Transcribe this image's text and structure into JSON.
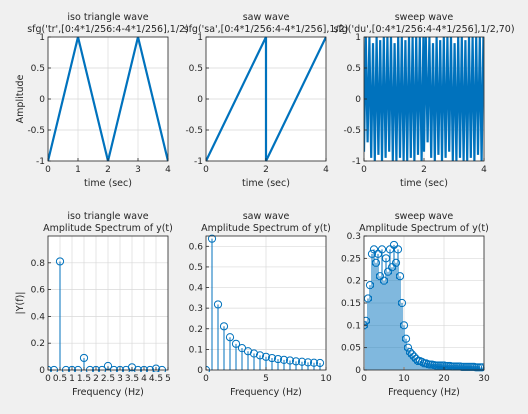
{
  "figure": {
    "background": "#f0f0f0",
    "axes_bg": "#ffffff",
    "line_color": "#0072bd",
    "grid_color": "#d9d9d9",
    "frame_color": "#262626"
  },
  "chart_data": [
    {
      "type": "line",
      "title": "iso triangle wave",
      "subtitle": "sfg('tr',[0:4*1/256:4-4*1/256],1/2)",
      "xlabel": "time (sec)",
      "ylabel": "Amplitude",
      "xlim": [
        0,
        4
      ],
      "ylim": [
        -1,
        1
      ],
      "xticks": [
        0,
        1,
        2,
        3,
        4
      ],
      "xtick_labels": [
        "0",
        "1",
        "2",
        "3",
        "4"
      ],
      "yticks": [
        -1,
        -0.5,
        0,
        0.5,
        1
      ],
      "ytick_labels": [
        "-1",
        "-0.5",
        "0",
        "0.5",
        "1"
      ],
      "grid": true,
      "series": [
        {
          "x": [
            0,
            1,
            2,
            3,
            4
          ],
          "y": [
            -1,
            1,
            -1,
            1,
            -1
          ]
        }
      ]
    },
    {
      "type": "line",
      "title": "saw wave",
      "subtitle": "sfg('sa',[0:4*1/256:4-4*1/256],1/2)",
      "xlabel": "time (sec)",
      "ylabel": "",
      "xlim": [
        0,
        4
      ],
      "ylim": [
        -1,
        1
      ],
      "xticks": [
        0,
        2,
        4
      ],
      "xtick_labels": [
        "0",
        "2",
        "4"
      ],
      "yticks": [
        -1,
        -0.5,
        0,
        0.5,
        1
      ],
      "ytick_labels": [
        "-1",
        "-0.5",
        "0",
        "0.5",
        "1"
      ],
      "grid": true,
      "series": [
        {
          "x": [
            0,
            2,
            2,
            4
          ],
          "y": [
            -1,
            1,
            -1,
            1
          ]
        }
      ]
    },
    {
      "type": "line",
      "title": "sweep wave",
      "subtitle": "sfg('du',[0:4*1/256:4-4*1/256],1/2,70)",
      "xlabel": "time (sec)",
      "ylabel": "",
      "xlim": [
        0,
        4
      ],
      "ylim": [
        -1,
        1
      ],
      "xticks": [
        0,
        2,
        4
      ],
      "xtick_labels": [
        "0",
        "2",
        "4"
      ],
      "yticks": [
        -1,
        -0.5,
        0,
        0.5,
        1
      ],
      "ytick_labels": [
        "-1",
        "-0.5",
        "0",
        "0.5",
        "1"
      ],
      "grid": true,
      "series": [
        {
          "x": [
            0,
            0.06,
            0.12,
            0.18,
            0.24,
            0.3,
            0.36,
            0.42,
            0.48,
            0.54,
            0.6,
            0.66,
            0.72,
            0.78,
            0.84,
            0.9,
            0.96,
            1.02,
            1.08,
            1.14,
            1.2,
            1.26,
            1.32,
            1.38,
            1.44,
            1.5,
            1.56,
            1.62,
            1.68,
            1.74,
            1.8,
            1.86,
            1.92,
            1.98,
            2.0,
            2.06,
            2.12,
            2.18,
            2.24,
            2.3,
            2.36,
            2.42,
            2.48,
            2.54,
            2.6,
            2.66,
            2.72,
            2.78,
            2.84,
            2.9,
            2.96,
            3.02,
            3.08,
            3.14,
            3.2,
            3.26,
            3.32,
            3.38,
            3.44,
            3.5,
            3.56,
            3.62,
            3.68,
            3.74,
            3.8,
            3.86,
            3.92,
            3.98
          ],
          "y": [
            -0.85,
            1,
            -0.7,
            1,
            -0.95,
            0.9,
            -1,
            1,
            -0.9,
            0.95,
            -1,
            1,
            -0.95,
            1,
            -0.85,
            1,
            -1,
            0.9,
            -1,
            1,
            -0.95,
            1,
            -1,
            0.95,
            -1,
            1,
            -0.95,
            1,
            -1,
            1,
            -0.9,
            1,
            -1,
            1,
            -0.85,
            1,
            -0.7,
            1,
            -0.95,
            0.9,
            -1,
            1,
            -0.9,
            0.95,
            -1,
            1,
            -0.95,
            1,
            -0.85,
            1,
            -1,
            0.9,
            -1,
            1,
            -0.95,
            1,
            -1,
            0.95,
            -1,
            1,
            -0.95,
            1,
            -1,
            1,
            -0.9,
            1,
            -1,
            1
          ]
        }
      ]
    },
    {
      "type": "stem",
      "title": "iso triangle wave",
      "subtitle": "Amplitude Spectrum of y(t)",
      "xlabel": "Frequency (Hz)",
      "ylabel": "|Y(f)|",
      "xlim": [
        0,
        5
      ],
      "ylim": [
        0,
        1
      ],
      "xticks": [
        0,
        0.5,
        1,
        1.5,
        2,
        2.5,
        3,
        3.5,
        4,
        4.5,
        5
      ],
      "xtick_labels": [
        "0",
        "0.5",
        "1",
        "1.5",
        "2",
        "2.5",
        "3",
        "3.5",
        "4",
        "4.5",
        "5"
      ],
      "yticks": [
        0,
        0.2,
        0.4,
        0.6,
        0.8
      ],
      "ytick_labels": [
        "0",
        "0.2",
        "0.4",
        "0.6",
        "0.8"
      ],
      "grid": true,
      "series": [
        {
          "x": [
            0,
            0.25,
            0.5,
            0.75,
            1,
            1.25,
            1.5,
            1.75,
            2,
            2.25,
            2.5,
            2.75,
            3,
            3.25,
            3.5,
            3.75,
            4,
            4.25,
            4.5,
            4.75
          ],
          "y": [
            0,
            0,
            0.81,
            0,
            0,
            0,
            0.09,
            0,
            0,
            0,
            0.03,
            0,
            0,
            0,
            0.02,
            0,
            0,
            0,
            0.01,
            0
          ]
        }
      ]
    },
    {
      "type": "stem",
      "title": "saw wave",
      "subtitle": "Amplitude Spectrum of y(t)",
      "xlabel": "Frequency (Hz)",
      "ylabel": "",
      "xlim": [
        0,
        10
      ],
      "ylim": [
        0,
        0.65
      ],
      "xticks": [
        0,
        5,
        10
      ],
      "xtick_labels": [
        "0",
        "5",
        "10"
      ],
      "yticks": [
        0,
        0.1,
        0.2,
        0.3,
        0.4,
        0.5,
        0.6
      ],
      "ytick_labels": [
        "0",
        "0.1",
        "0.2",
        "0.3",
        "0.4",
        "0.5",
        "0.6"
      ],
      "grid": true,
      "series": [
        {
          "x": [
            0,
            0.5,
            1,
            1.5,
            2,
            2.5,
            3,
            3.5,
            4,
            4.5,
            5,
            5.5,
            6,
            6.5,
            7,
            7.5,
            8,
            8.5,
            9,
            9.5
          ],
          "y": [
            0,
            0.637,
            0.318,
            0.212,
            0.159,
            0.127,
            0.106,
            0.091,
            0.08,
            0.071,
            0.064,
            0.058,
            0.053,
            0.049,
            0.046,
            0.042,
            0.04,
            0.037,
            0.035,
            0.034
          ]
        }
      ]
    },
    {
      "type": "stem",
      "title": "sweep wave",
      "subtitle": "Amplitude Spectrum of y(t)",
      "xlabel": "Frequency (Hz)",
      "ylabel": "",
      "xlim": [
        0,
        30
      ],
      "ylim": [
        0,
        0.3
      ],
      "xticks": [
        0,
        10,
        20,
        30
      ],
      "xtick_labels": [
        "0",
        "10",
        "20",
        "30"
      ],
      "yticks": [
        0,
        0.05,
        0.1,
        0.15,
        0.2,
        0.25,
        0.3
      ],
      "ytick_labels": [
        "0",
        "0.05",
        "0.1",
        "0.15",
        "0.2",
        "0.25",
        "0.3"
      ],
      "grid": true,
      "series": [
        {
          "x": [
            0,
            0.5,
            1,
            1.5,
            2,
            2.5,
            3,
            3.5,
            4,
            4.5,
            5,
            5.5,
            6,
            6.5,
            7,
            7.5,
            8,
            8.5,
            9,
            9.5,
            10,
            10.5,
            11,
            11.5,
            12,
            12.5,
            13,
            13.5,
            14,
            14.5,
            15,
            15.5,
            16,
            16.5,
            17,
            17.5,
            18,
            18.5,
            19,
            19.5,
            20,
            20.5,
            21,
            21.5,
            22,
            22.5,
            23,
            23.5,
            24,
            24.5,
            25,
            25.5,
            26,
            26.5,
            27,
            27.5,
            28,
            28.5,
            29,
            29.5
          ],
          "y": [
            0.1,
            0.11,
            0.16,
            0.19,
            0.26,
            0.27,
            0.24,
            0.26,
            0.21,
            0.27,
            0.2,
            0.25,
            0.22,
            0.27,
            0.23,
            0.28,
            0.24,
            0.27,
            0.21,
            0.15,
            0.1,
            0.07,
            0.05,
            0.04,
            0.035,
            0.03,
            0.025,
            0.02,
            0.02,
            0.018,
            0.015,
            0.015,
            0.013,
            0.012,
            0.012,
            0.011,
            0.01,
            0.01,
            0.01,
            0.01,
            0.01,
            0.009,
            0.009,
            0.009,
            0.008,
            0.008,
            0.008,
            0.008,
            0.008,
            0.007,
            0.007,
            0.007,
            0.007,
            0.007,
            0.007,
            0.007,
            0.006,
            0.006,
            0.006,
            0.006
          ]
        }
      ]
    }
  ]
}
